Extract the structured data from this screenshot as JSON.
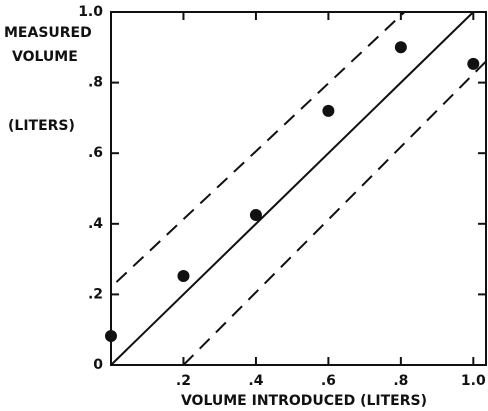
{
  "chart_data": {
    "type": "scatter",
    "ylabel_lines": [
      "MEASURED",
      "VOLUME",
      "(LITERS)"
    ],
    "xlabel": "VOLUME INTRODUCED (LITERS)",
    "x": [
      0,
      0.2,
      0.4,
      0.6,
      0.8,
      1.0
    ],
    "values": [
      0.082,
      0.252,
      0.425,
      0.72,
      0.9,
      0.853
    ],
    "color": "#111111",
    "xlim": [
      0,
      1.035
    ],
    "ylim": [
      0,
      1
    ],
    "xticks": [
      {
        "value": 0.2,
        "label": ".2"
      },
      {
        "value": 0.4,
        "label": ".4"
      },
      {
        "value": 0.6,
        "label": ".6"
      },
      {
        "value": 0.8,
        "label": ".8"
      },
      {
        "value": 1.0,
        "label": "1.0"
      }
    ],
    "yticks": [
      0,
      {
        "value": 0.2,
        "label": ".2"
      },
      {
        "value": 0.4,
        "label": ".4"
      },
      {
        "value": 0.6,
        "label": ".6"
      },
      {
        "value": 0.8,
        "label": ".8"
      },
      {
        "value": 1.0,
        "label": "1.0"
      }
    ],
    "lines": [
      {
        "style": "solid",
        "x": [
          0,
          1.0
        ],
        "y": [
          0,
          1.0
        ]
      },
      {
        "style": "dashed",
        "x": [
          0.015,
          0.81
        ],
        "y": [
          0.235,
          1.0
        ]
      },
      {
        "style": "dashed",
        "x": [
          0.2,
          1.035
        ],
        "y": [
          0,
          0.86
        ]
      }
    ]
  }
}
